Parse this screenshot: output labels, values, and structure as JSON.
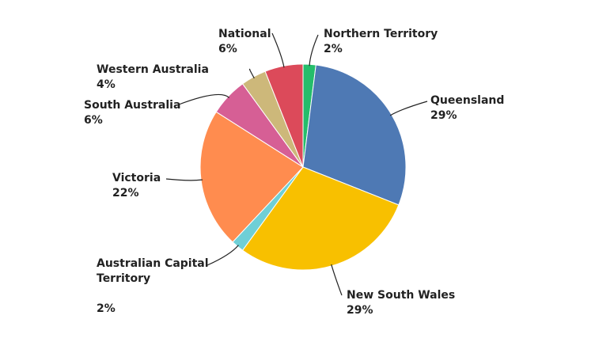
{
  "chart_data": {
    "type": "pie",
    "categories": [
      "Northern Territory",
      "Queensland",
      "New South Wales",
      "Australian Capital Territory",
      "Victoria",
      "South Australia",
      "Western Australia",
      "National"
    ],
    "values": [
      2,
      29,
      29,
      2,
      22,
      6,
      4,
      6
    ],
    "value_labels": [
      "2%",
      "29%",
      "29%",
      "2%",
      "22%",
      "6%",
      "4%",
      "6%"
    ],
    "colors": [
      "#25bd6b",
      "#4e79b4",
      "#f8c000",
      "#6fcfd6",
      "#ff8c4f",
      "#d65f95",
      "#cdb87a",
      "#dc4a5a"
    ]
  }
}
